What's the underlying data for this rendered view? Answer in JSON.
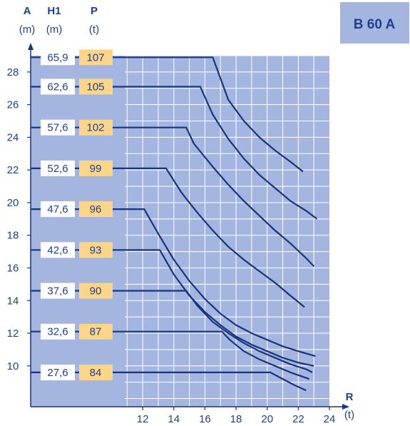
{
  "badge": "B 60 A",
  "colors": {
    "plot_bg": "#a4b6e0",
    "grid": "#ffffff",
    "curve": "#17357f",
    "text": "#1f3f8f",
    "h1_box": "#ffffff",
    "p_box": "#fbd689",
    "badge_bg": "#a4b6e0"
  },
  "chart_data": {
    "type": "line",
    "y_axis": {
      "letter": "A",
      "unit": "(m)",
      "ticks": [
        10,
        12,
        14,
        16,
        18,
        20,
        22,
        24,
        26,
        28
      ]
    },
    "x_axis": {
      "letter": "R",
      "unit": "(t)",
      "ticks": [
        12,
        14,
        16,
        18,
        20,
        22,
        24
      ]
    },
    "columns": {
      "h1": {
        "title": "H1",
        "unit": "(m)"
      },
      "p": {
        "title": "P",
        "unit": "(t)"
      }
    },
    "xlim": [
      4.8,
      24
    ],
    "ylim": [
      7.5,
      29
    ],
    "grid": true,
    "series": [
      {
        "h1": "65,9",
        "p": "107",
        "y": 28.9,
        "points": [
          [
            16.5,
            28.9
          ],
          [
            17.5,
            26.3
          ],
          [
            18.5,
            25.0
          ],
          [
            19.5,
            24.0
          ],
          [
            20.5,
            23.2
          ],
          [
            21.5,
            22.5
          ],
          [
            22.3,
            21.9
          ]
        ]
      },
      {
        "h1": "62,6",
        "p": "105",
        "y": 27.1,
        "points": [
          [
            15.7,
            27.1
          ],
          [
            16.5,
            25.4
          ],
          [
            17.5,
            23.9
          ],
          [
            18.5,
            22.7
          ],
          [
            19.5,
            21.7
          ],
          [
            20.5,
            20.9
          ],
          [
            21.5,
            20.1
          ],
          [
            22.5,
            19.5
          ],
          [
            23.2,
            19.0
          ]
        ]
      },
      {
        "h1": "57,6",
        "p": "102",
        "y": 24.6,
        "points": [
          [
            14.8,
            24.6
          ],
          [
            15.3,
            23.6
          ],
          [
            16.5,
            22.2
          ],
          [
            17.5,
            21.1
          ],
          [
            18.5,
            20.1
          ],
          [
            19.5,
            19.2
          ],
          [
            20.5,
            18.3
          ],
          [
            21.5,
            17.5
          ],
          [
            22.5,
            16.6
          ],
          [
            23.0,
            16.1
          ]
        ]
      },
      {
        "h1": "52,6",
        "p": "99",
        "y": 22.1,
        "points": [
          [
            13.5,
            22.1
          ],
          [
            14.5,
            20.6
          ],
          [
            15.5,
            19.4
          ],
          [
            16.5,
            18.3
          ],
          [
            17.5,
            17.3
          ],
          [
            18.5,
            16.5
          ],
          [
            19.5,
            15.8
          ],
          [
            20.5,
            15.1
          ],
          [
            21.5,
            14.3
          ],
          [
            22.4,
            13.6
          ]
        ]
      },
      {
        "h1": "47,6",
        "p": "96",
        "y": 19.6,
        "points": [
          [
            12.1,
            19.6
          ],
          [
            13.0,
            18.1
          ],
          [
            14.0,
            16.5
          ],
          [
            15.0,
            15.2
          ],
          [
            16.0,
            14.1
          ],
          [
            17.0,
            13.2
          ],
          [
            18.0,
            12.5
          ],
          [
            19.0,
            12.0
          ],
          [
            20.0,
            11.6
          ],
          [
            21.0,
            11.2
          ],
          [
            22.0,
            10.9
          ],
          [
            23.1,
            10.6
          ]
        ]
      },
      {
        "h1": "42,6",
        "p": "93",
        "y": 17.1,
        "points": [
          [
            13.1,
            17.1
          ],
          [
            14.0,
            15.6
          ],
          [
            15.0,
            14.3
          ],
          [
            16.0,
            13.3
          ],
          [
            17.0,
            12.5
          ],
          [
            18.0,
            11.8
          ],
          [
            19.0,
            11.3
          ],
          [
            20.0,
            10.9
          ],
          [
            21.0,
            10.5
          ],
          [
            22.0,
            10.2
          ],
          [
            23.0,
            10.0
          ]
        ]
      },
      {
        "h1": "37,6",
        "p": "90",
        "y": 14.6,
        "points": [
          [
            14.8,
            14.6
          ],
          [
            15.5,
            13.7
          ],
          [
            16.5,
            12.7
          ],
          [
            17.5,
            12.0
          ],
          [
            18.5,
            11.4
          ],
          [
            19.5,
            10.9
          ],
          [
            20.5,
            10.5
          ],
          [
            21.5,
            10.1
          ],
          [
            22.5,
            9.8
          ],
          [
            22.9,
            9.6
          ]
        ]
      },
      {
        "h1": "32,6",
        "p": "87",
        "y": 12.1,
        "points": [
          [
            17.1,
            12.1
          ],
          [
            17.6,
            11.6
          ],
          [
            18.5,
            10.9
          ],
          [
            19.5,
            10.4
          ],
          [
            20.5,
            10.0
          ],
          [
            21.5,
            9.6
          ],
          [
            22.7,
            9.2
          ]
        ]
      },
      {
        "h1": "27,6",
        "p": "84",
        "y": 9.6,
        "points": [
          [
            20.2,
            9.6
          ],
          [
            21.0,
            9.2
          ],
          [
            21.8,
            8.8
          ],
          [
            22.5,
            8.5
          ]
        ]
      }
    ]
  }
}
